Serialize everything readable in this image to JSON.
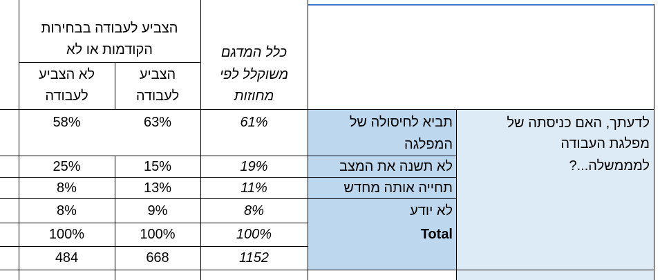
{
  "header": {
    "group_title_line1": "הצביע לעבודה בבחירות",
    "group_title_line2": "הקודמות או לא",
    "col_no_line1": "לא הצביע",
    "col_no_line2": "לעבודה",
    "col_yes_line1": "הצביע",
    "col_yes_line2": "לעבודה",
    "col_total_line1": "כלל המדגם",
    "col_total_line2": "משוקלל לפי",
    "col_total_line3": "מחוזות"
  },
  "question": {
    "line1": "לדעתך, האם כניסתה של",
    "line2": "מפלגת העבודה",
    "line3": "למממשלה...?"
  },
  "rows": [
    {
      "label_line1": "תביא לחיסולה של",
      "label_line2": "המפלגה",
      "total": "61%",
      "voted": "63%",
      "not_voted": "58%"
    },
    {
      "label_line1": "לא תשנה את המצב",
      "total": "19%",
      "voted": "15%",
      "not_voted": "25%"
    },
    {
      "label_line1": "תחייה אותה מחדש",
      "total": "11%",
      "voted": "13%",
      "not_voted": "8%"
    },
    {
      "label_line1": "לא יודע",
      "total": "8%",
      "voted": "9%",
      "not_voted": "8%"
    },
    {
      "label_line1": "Total",
      "total": "100%",
      "voted": "100%",
      "not_voted": "100%"
    },
    {
      "label_line1": "",
      "total": "1152",
      "voted": "668",
      "not_voted": "484"
    }
  ],
  "colors": {
    "label_fill": "#bdd7ee",
    "question_fill": "#ddebf7",
    "top_border": "#4472c4"
  }
}
